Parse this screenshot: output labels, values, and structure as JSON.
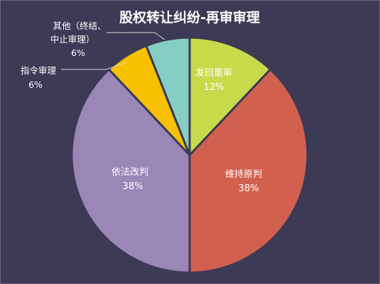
{
  "chart_data": {
    "type": "pie",
    "title": "股权转让纠纷-再审审理",
    "slices": [
      {
        "label": "发回重审",
        "value": 12,
        "value_label": "12%",
        "color": "#c8d94a"
      },
      {
        "label": "维持原判",
        "value": 38,
        "value_label": "38%",
        "color": "#d2604f"
      },
      {
        "label": "依法改判",
        "value": 38,
        "value_label": "38%",
        "color": "#9b86b8"
      },
      {
        "label": "指令审理",
        "value": 6,
        "value_label": "6%",
        "color": "#f6c100"
      },
      {
        "label": "其他（终结、中止审理）",
        "value": 6,
        "value_label": "6%",
        "color": "#86cec5"
      }
    ],
    "start_angle": "12 o'clock",
    "direction": "clockwise",
    "legend": "none"
  },
  "labels": {
    "other_line1": "其他（终结、",
    "other_line2": "中止审理）"
  }
}
